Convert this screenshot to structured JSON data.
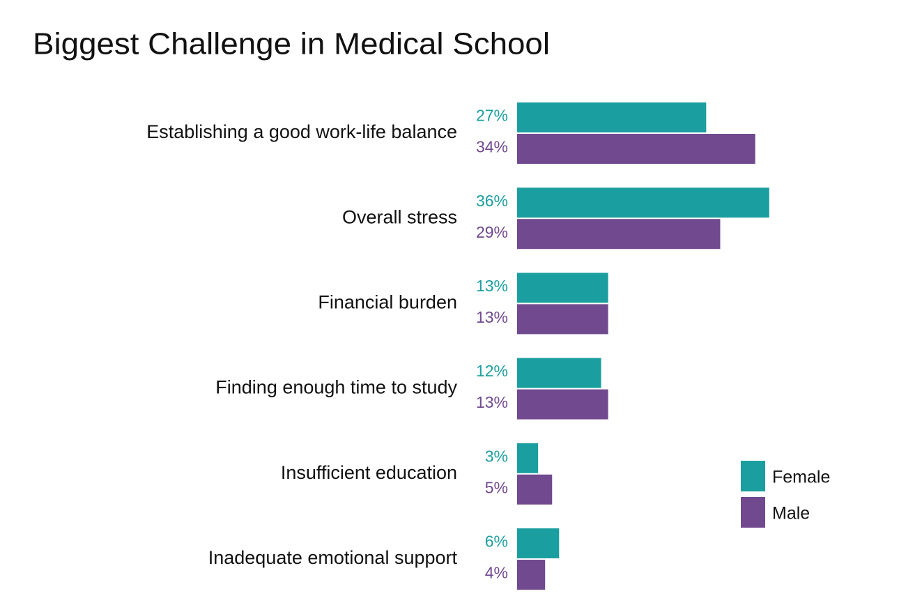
{
  "chart_data": {
    "type": "hbar",
    "title": "Biggest Challenge in Medical School",
    "categories": [
      "Establishing a good work-life balance",
      "Overall stress",
      "Financial burden",
      "Finding enough time to study",
      "Insufficient education",
      "Inadequate emotional support"
    ],
    "series": [
      {
        "name": "Female",
        "color": "#1b9e9f",
        "values": [
          27,
          36,
          13,
          12,
          3,
          6
        ],
        "value_labels": [
          "27%",
          "36%",
          "13%",
          "12%",
          "3%",
          "6%"
        ]
      },
      {
        "name": "Male",
        "color": "#70498f",
        "values": [
          34,
          29,
          13,
          13,
          5,
          4
        ],
        "value_labels": [
          "34%",
          "29%",
          "13%",
          "13%",
          "5%",
          "4%"
        ]
      }
    ]
  }
}
